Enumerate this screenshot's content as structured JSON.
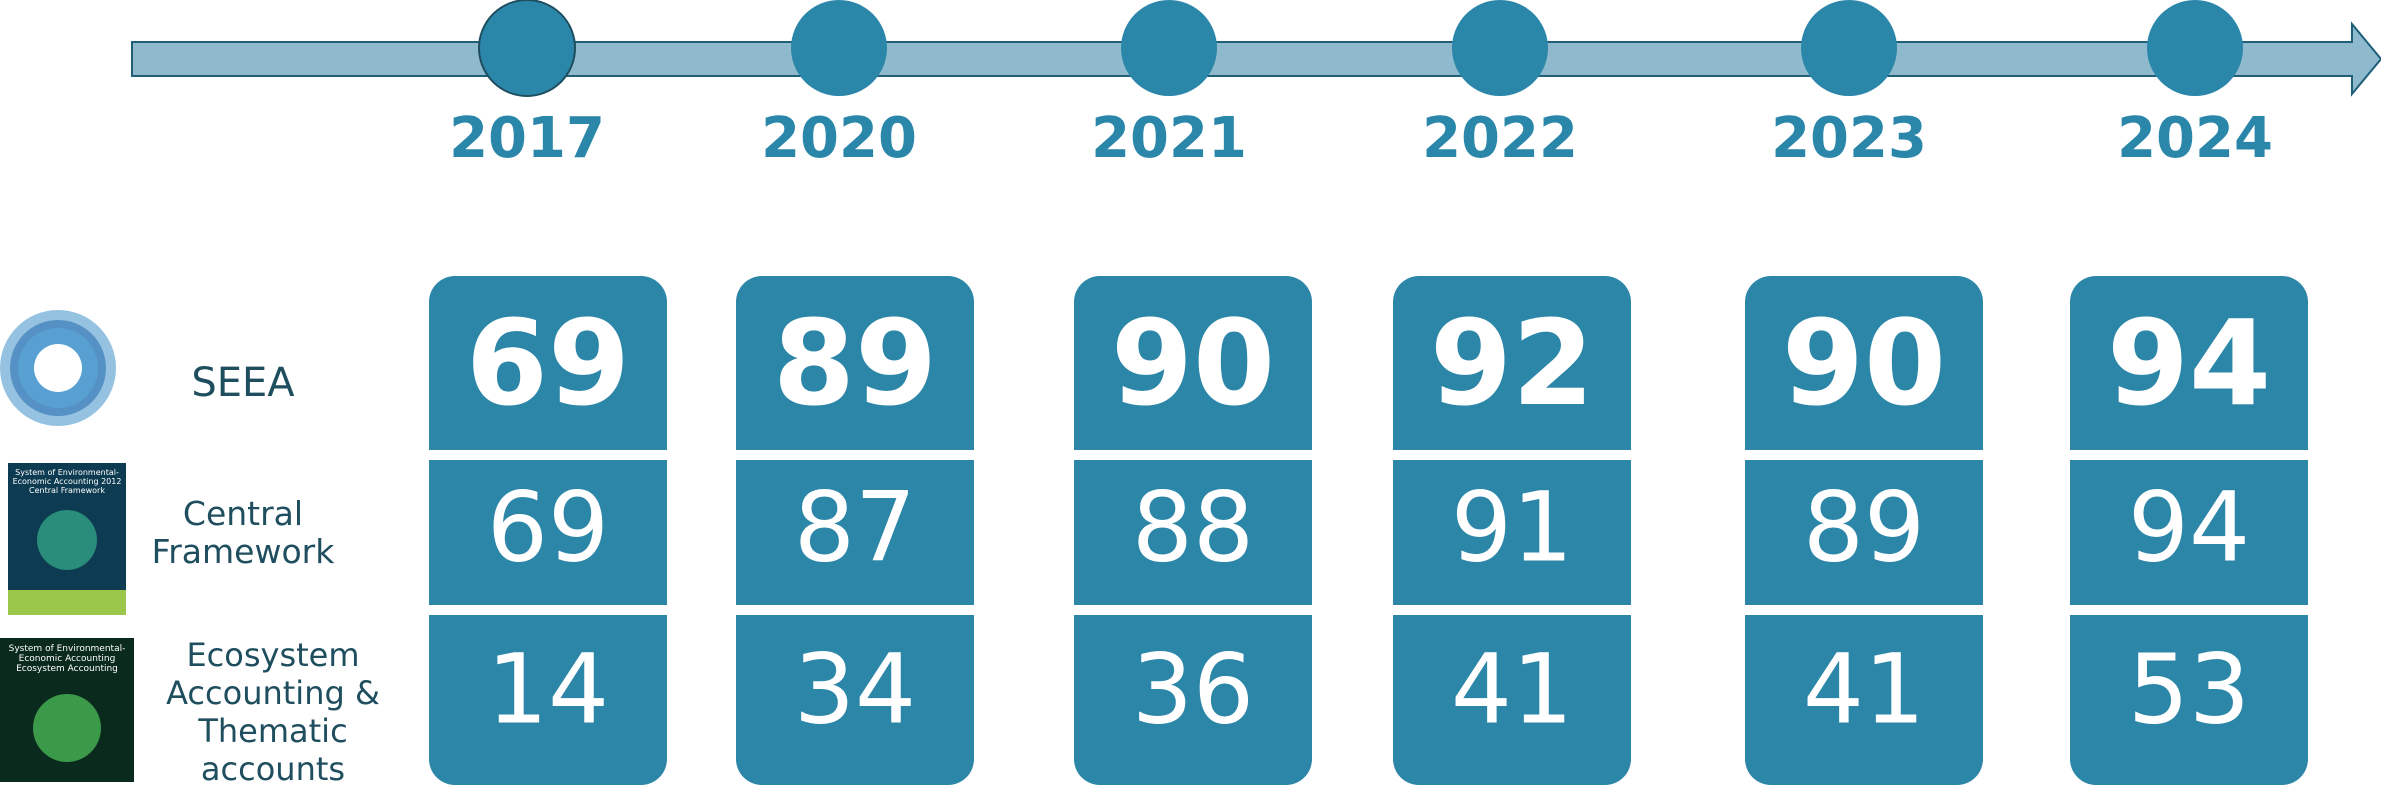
{
  "timeline": {
    "years": [
      "2017",
      "2020",
      "2021",
      "2022",
      "2023",
      "2024"
    ]
  },
  "rows": [
    {
      "label": "SEEA",
      "values": [
        "69",
        "89",
        "90",
        "92",
        "90",
        "94"
      ]
    },
    {
      "label": "Central Framework",
      "values": [
        "69",
        "87",
        "88",
        "91",
        "89",
        "94"
      ],
      "cover": "System of Environmental-Economic Accounting 2012 Central Framework"
    },
    {
      "label": "Ecosystem Accounting & Thematic accounts",
      "values": [
        "14",
        "34",
        "36",
        "41",
        "41",
        "53"
      ],
      "cover": "System of Environmental-Economic Accounting Ecosystem Accounting"
    }
  ]
}
